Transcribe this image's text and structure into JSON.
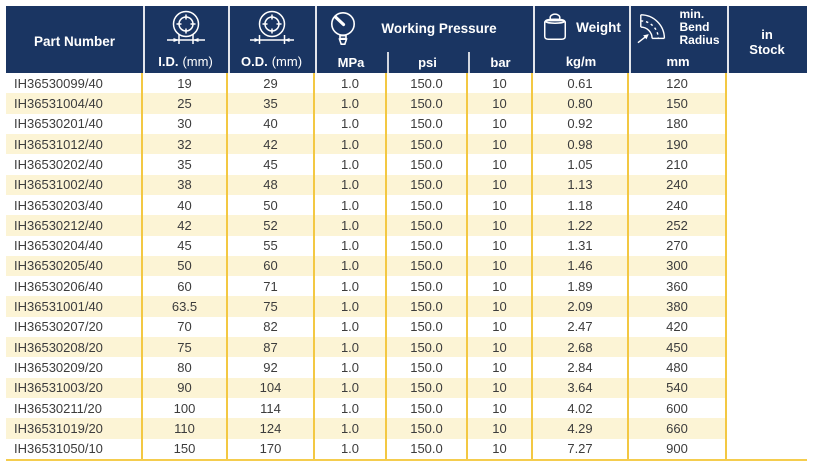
{
  "table": {
    "header": {
      "part_number": "Part Number",
      "id_label": "I.D.",
      "id_unit": "(mm)",
      "od_label": "O.D.",
      "od_unit": "(mm)",
      "working_pressure": "Working Pressure",
      "mpa": "MPa",
      "psi": "psi",
      "bar": "bar",
      "weight": "Weight",
      "weight_unit": "kg/m",
      "bend_radius": "min.\nBend\nRadius",
      "bend_unit": "mm",
      "in_stock": "in\nStock"
    },
    "icons": {
      "id": "inner-diameter-icon",
      "od": "outer-diameter-icon",
      "pressure": "pressure-gauge-icon",
      "weight": "weight-icon",
      "bend": "bend-radius-icon"
    },
    "rows": [
      {
        "part": "IH36530099/40",
        "id": "19",
        "od": "29",
        "mpa": "1.0",
        "psi": "150.0",
        "bar": "10",
        "kg_m": "0.61",
        "mm": "120",
        "stock": ""
      },
      {
        "part": "IH36531004/40",
        "id": "25",
        "od": "35",
        "mpa": "1.0",
        "psi": "150.0",
        "bar": "10",
        "kg_m": "0.80",
        "mm": "150",
        "stock": ""
      },
      {
        "part": "IH36530201/40",
        "id": "30",
        "od": "40",
        "mpa": "1.0",
        "psi": "150.0",
        "bar": "10",
        "kg_m": "0.92",
        "mm": "180",
        "stock": ""
      },
      {
        "part": "IH36531012/40",
        "id": "32",
        "od": "42",
        "mpa": "1.0",
        "psi": "150.0",
        "bar": "10",
        "kg_m": "0.98",
        "mm": "190",
        "stock": ""
      },
      {
        "part": "IH36530202/40",
        "id": "35",
        "od": "45",
        "mpa": "1.0",
        "psi": "150.0",
        "bar": "10",
        "kg_m": "1.05",
        "mm": "210",
        "stock": ""
      },
      {
        "part": "IH36531002/40",
        "id": "38",
        "od": "48",
        "mpa": "1.0",
        "psi": "150.0",
        "bar": "10",
        "kg_m": "1.13",
        "mm": "240",
        "stock": ""
      },
      {
        "part": "IH36530203/40",
        "id": "40",
        "od": "50",
        "mpa": "1.0",
        "psi": "150.0",
        "bar": "10",
        "kg_m": "1.18",
        "mm": "240",
        "stock": ""
      },
      {
        "part": "IH36530212/40",
        "id": "42",
        "od": "52",
        "mpa": "1.0",
        "psi": "150.0",
        "bar": "10",
        "kg_m": "1.22",
        "mm": "252",
        "stock": ""
      },
      {
        "part": "IH36530204/40",
        "id": "45",
        "od": "55",
        "mpa": "1.0",
        "psi": "150.0",
        "bar": "10",
        "kg_m": "1.31",
        "mm": "270",
        "stock": ""
      },
      {
        "part": "IH36530205/40",
        "id": "50",
        "od": "60",
        "mpa": "1.0",
        "psi": "150.0",
        "bar": "10",
        "kg_m": "1.46",
        "mm": "300",
        "stock": ""
      },
      {
        "part": "IH36530206/40",
        "id": "60",
        "od": "71",
        "mpa": "1.0",
        "psi": "150.0",
        "bar": "10",
        "kg_m": "1.89",
        "mm": "360",
        "stock": ""
      },
      {
        "part": "IH36531001/40",
        "id": "63.5",
        "od": "75",
        "mpa": "1.0",
        "psi": "150.0",
        "bar": "10",
        "kg_m": "2.09",
        "mm": "380",
        "stock": ""
      },
      {
        "part": "IH36530207/20",
        "id": "70",
        "od": "82",
        "mpa": "1.0",
        "psi": "150.0",
        "bar": "10",
        "kg_m": "2.47",
        "mm": "420",
        "stock": ""
      },
      {
        "part": "IH36530208/20",
        "id": "75",
        "od": "87",
        "mpa": "1.0",
        "psi": "150.0",
        "bar": "10",
        "kg_m": "2.68",
        "mm": "450",
        "stock": ""
      },
      {
        "part": "IH36530209/20",
        "id": "80",
        "od": "92",
        "mpa": "1.0",
        "psi": "150.0",
        "bar": "10",
        "kg_m": "2.84",
        "mm": "480",
        "stock": ""
      },
      {
        "part": "IH36531003/20",
        "id": "90",
        "od": "104",
        "mpa": "1.0",
        "psi": "150.0",
        "bar": "10",
        "kg_m": "3.64",
        "mm": "540",
        "stock": ""
      },
      {
        "part": "IH36530211/20",
        "id": "100",
        "od": "114",
        "mpa": "1.0",
        "psi": "150.0",
        "bar": "10",
        "kg_m": "4.02",
        "mm": "600",
        "stock": ""
      },
      {
        "part": "IH36531019/20",
        "id": "110",
        "od": "124",
        "mpa": "1.0",
        "psi": "150.0",
        "bar": "10",
        "kg_m": "4.29",
        "mm": "660",
        "stock": ""
      },
      {
        "part": "IH36531050/10",
        "id": "150",
        "od": "170",
        "mpa": "1.0",
        "psi": "150.0",
        "bar": "10",
        "kg_m": "7.27",
        "mm": "900",
        "stock": ""
      }
    ]
  },
  "colors": {
    "header_bg": "#1a3562",
    "header_text": "#ffffff",
    "stripe": "#fcf4d5",
    "grid_line": "#f3c843",
    "body_text": "#3c3c3c"
  }
}
